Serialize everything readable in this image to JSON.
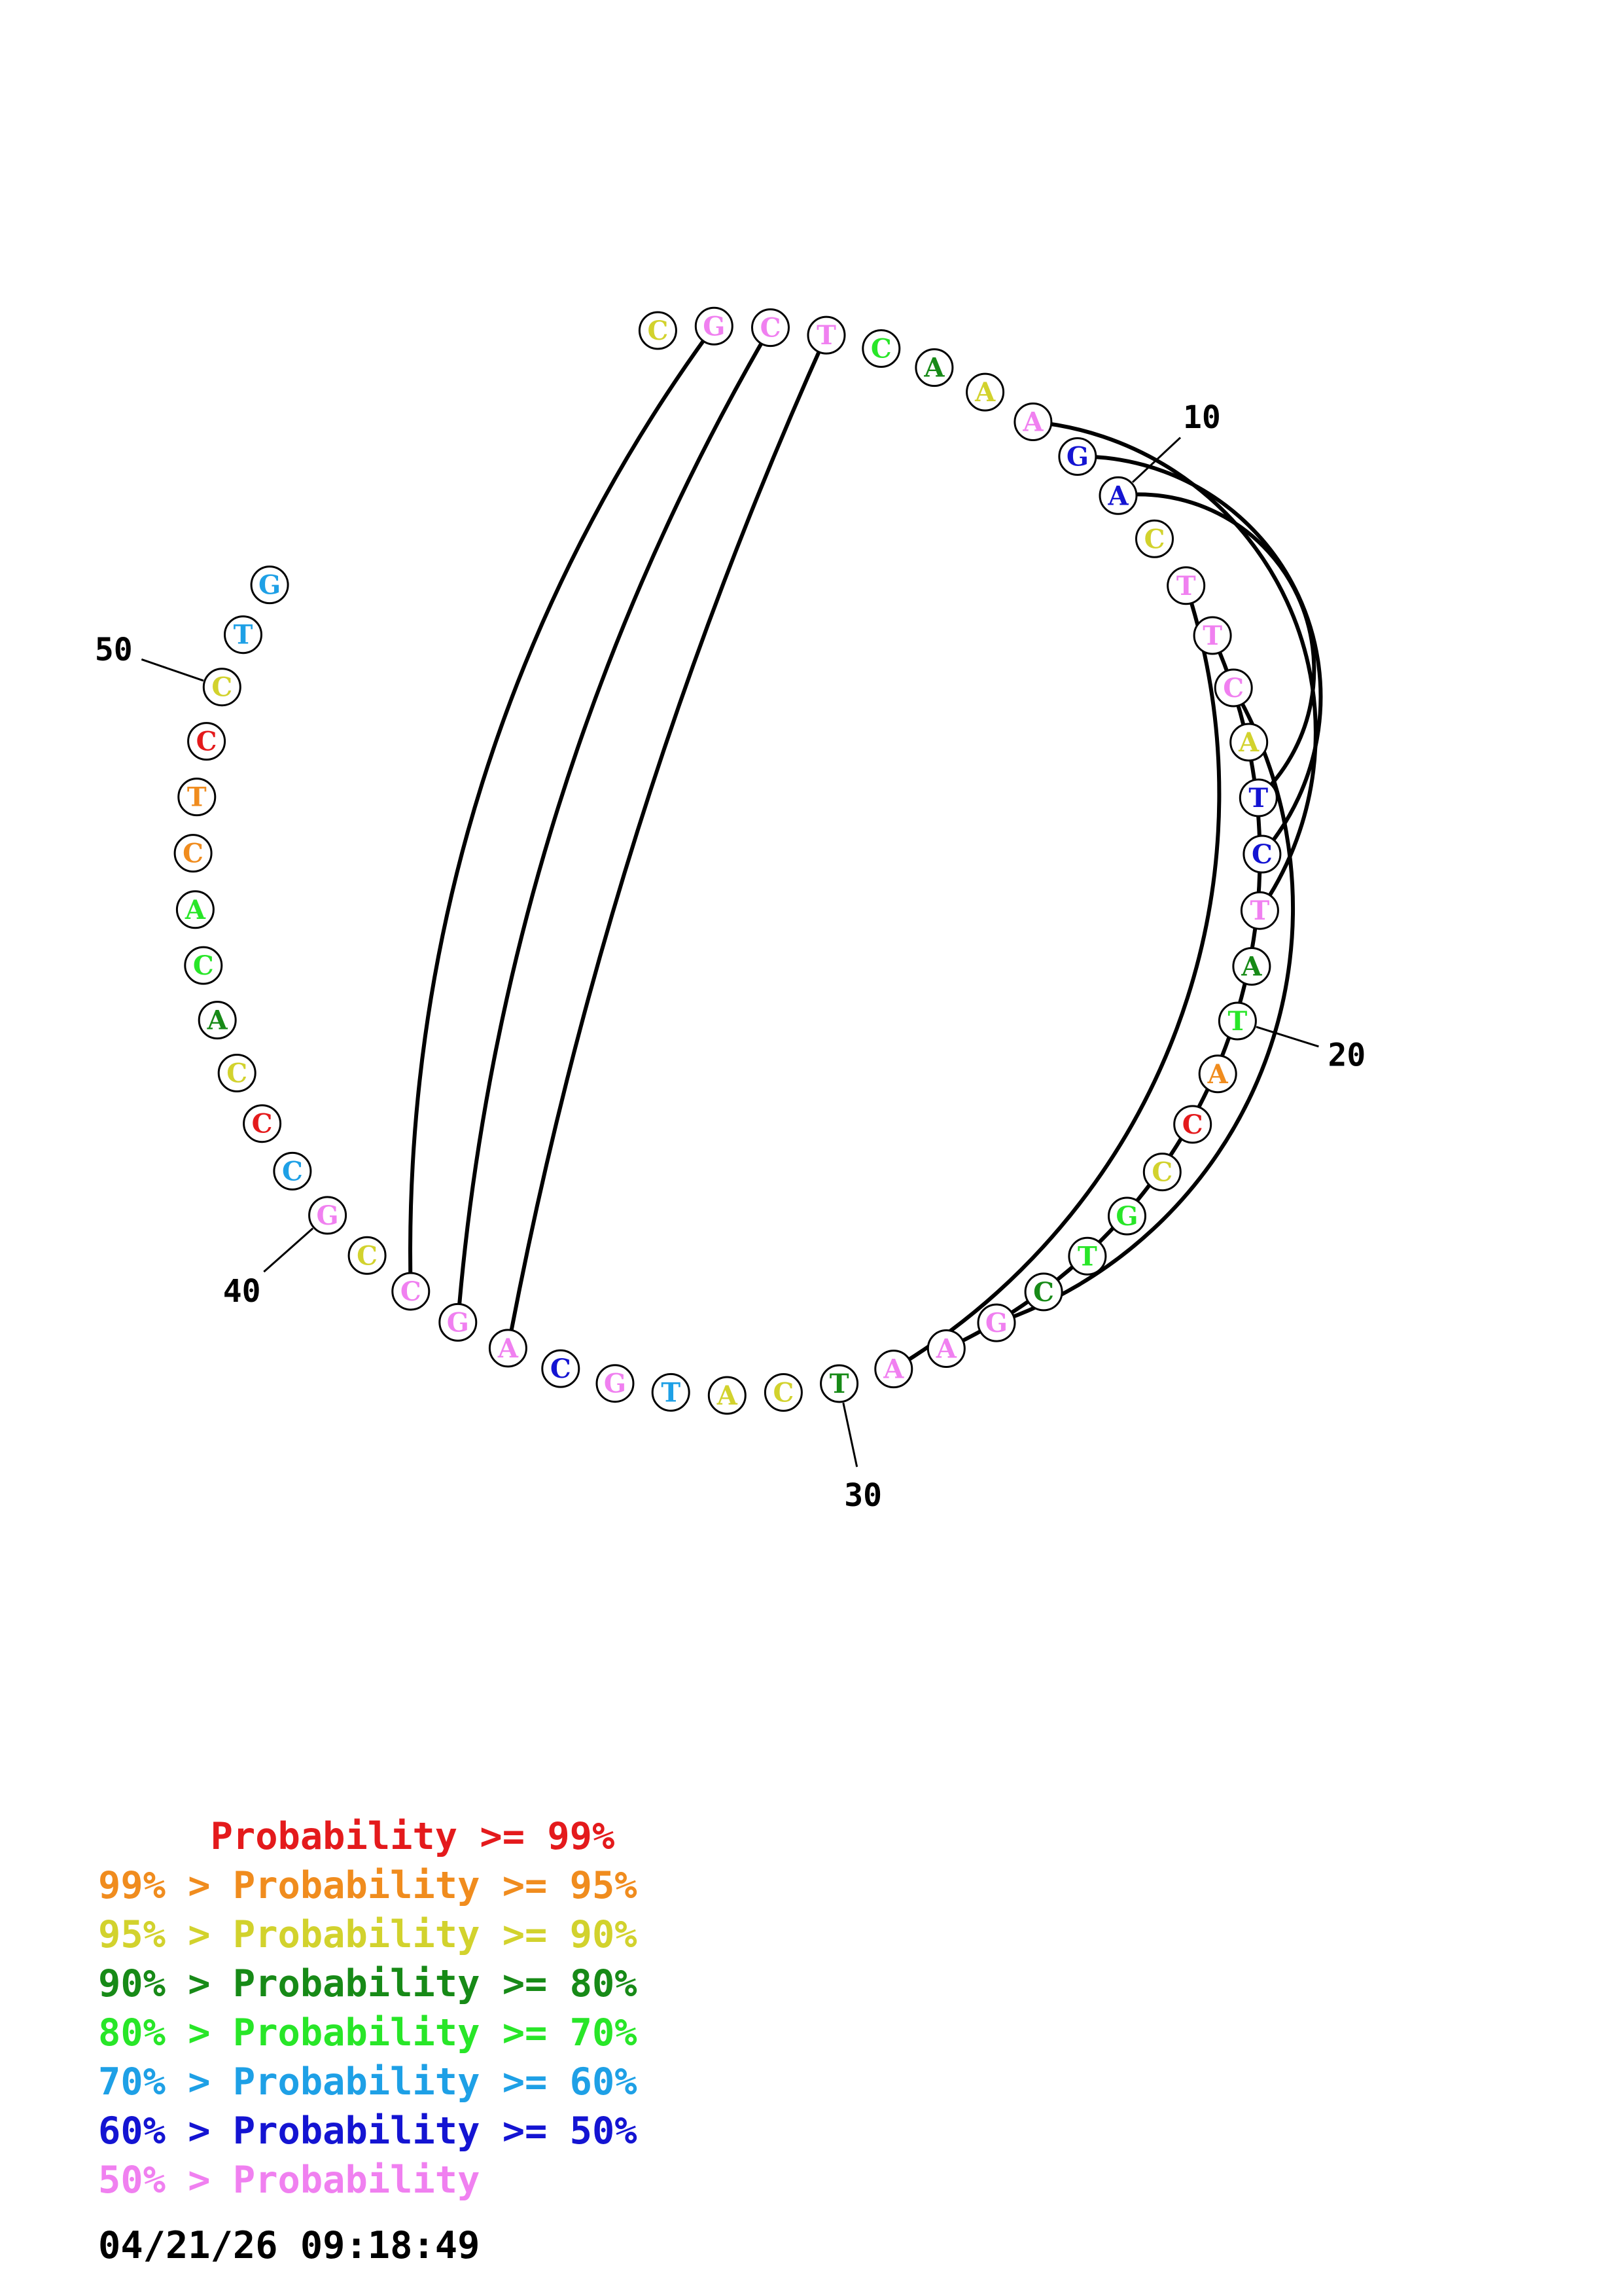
{
  "colors": {
    "red": "#e41a1c",
    "orange": "#f08c1e",
    "yellow": "#d2d22d",
    "darkgreen": "#178a17",
    "green": "#28e628",
    "lightblue": "#1ea0e6",
    "blue": "#1414d2",
    "pink": "#f080f0"
  },
  "nucleotides": [
    {
      "letter": "C",
      "color": "yellow"
    },
    {
      "letter": "G",
      "color": "pink"
    },
    {
      "letter": "C",
      "color": "pink"
    },
    {
      "letter": "T",
      "color": "pink"
    },
    {
      "letter": "C",
      "color": "green"
    },
    {
      "letter": "A",
      "color": "darkgreen"
    },
    {
      "letter": "A",
      "color": "yellow"
    },
    {
      "letter": "A",
      "color": "pink"
    },
    {
      "letter": "G",
      "color": "blue"
    },
    {
      "letter": "A",
      "color": "blue"
    },
    {
      "letter": "C",
      "color": "yellow"
    },
    {
      "letter": "T",
      "color": "pink"
    },
    {
      "letter": "T",
      "color": "pink"
    },
    {
      "letter": "C",
      "color": "pink"
    },
    {
      "letter": "A",
      "color": "yellow"
    },
    {
      "letter": "T",
      "color": "blue"
    },
    {
      "letter": "C",
      "color": "blue"
    },
    {
      "letter": "T",
      "color": "pink"
    },
    {
      "letter": "A",
      "color": "darkgreen"
    },
    {
      "letter": "T",
      "color": "green"
    },
    {
      "letter": "A",
      "color": "orange"
    },
    {
      "letter": "C",
      "color": "red"
    },
    {
      "letter": "C",
      "color": "yellow"
    },
    {
      "letter": "G",
      "color": "green"
    },
    {
      "letter": "T",
      "color": "green"
    },
    {
      "letter": "C",
      "color": "darkgreen"
    },
    {
      "letter": "G",
      "color": "pink"
    },
    {
      "letter": "A",
      "color": "pink"
    },
    {
      "letter": "A",
      "color": "pink"
    },
    {
      "letter": "T",
      "color": "darkgreen"
    },
    {
      "letter": "C",
      "color": "yellow"
    },
    {
      "letter": "A",
      "color": "yellow"
    },
    {
      "letter": "T",
      "color": "lightblue"
    },
    {
      "letter": "G",
      "color": "pink"
    },
    {
      "letter": "C",
      "color": "blue"
    },
    {
      "letter": "A",
      "color": "pink"
    },
    {
      "letter": "G",
      "color": "pink"
    },
    {
      "letter": "C",
      "color": "pink"
    },
    {
      "letter": "C",
      "color": "yellow"
    },
    {
      "letter": "G",
      "color": "pink"
    },
    {
      "letter": "C",
      "color": "lightblue"
    },
    {
      "letter": "C",
      "color": "red"
    },
    {
      "letter": "C",
      "color": "yellow"
    },
    {
      "letter": "A",
      "color": "darkgreen"
    },
    {
      "letter": "C",
      "color": "green"
    },
    {
      "letter": "A",
      "color": "green"
    },
    {
      "letter": "C",
      "color": "orange"
    },
    {
      "letter": "T",
      "color": "orange"
    },
    {
      "letter": "C",
      "color": "red"
    },
    {
      "letter": "C",
      "color": "yellow"
    },
    {
      "letter": "T",
      "color": "lightblue"
    },
    {
      "letter": "G",
      "color": "lightblue"
    }
  ],
  "pairs": [
    [
      2,
      38
    ],
    [
      3,
      37
    ],
    [
      4,
      36
    ],
    [
      8,
      18
    ],
    [
      9,
      17
    ],
    [
      10,
      16
    ],
    [
      12,
      29
    ],
    [
      13,
      28
    ],
    [
      14,
      27
    ]
  ],
  "ticks": [
    {
      "position": 10,
      "label": "10"
    },
    {
      "position": 20,
      "label": "20"
    },
    {
      "position": 30,
      "label": "30"
    },
    {
      "position": 40,
      "label": "40"
    },
    {
      "position": 50,
      "label": "50"
    }
  ],
  "legend": [
    {
      "text": "     Probability >= 99%",
      "color": "red"
    },
    {
      "text": "99% > Probability >= 95%",
      "color": "orange"
    },
    {
      "text": "95% > Probability >= 90%",
      "color": "yellow"
    },
    {
      "text": "90% > Probability >= 80%",
      "color": "darkgreen"
    },
    {
      "text": "80% > Probability >= 70%",
      "color": "green"
    },
    {
      "text": "70% > Probability >= 60%",
      "color": "lightblue"
    },
    {
      "text": "60% > Probability >= 50%",
      "color": "blue"
    },
    {
      "text": "50% > Probability",
      "color": "pink"
    }
  ],
  "timestamp": "04/21/26 09:18:49"
}
